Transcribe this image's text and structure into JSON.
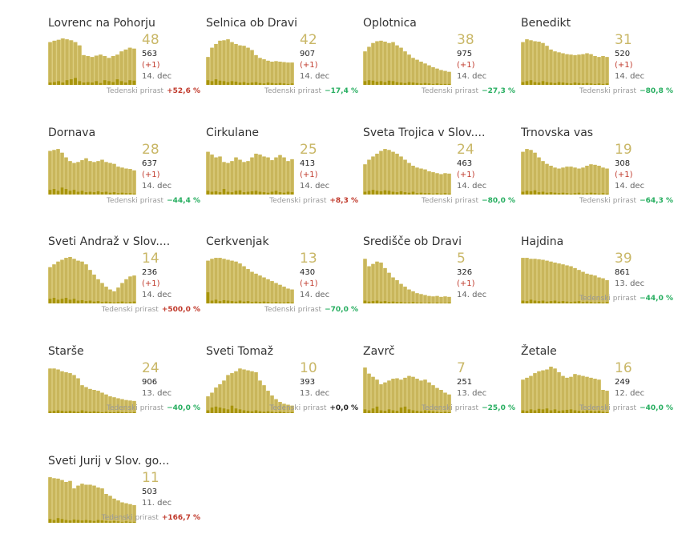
{
  "growth_label": "Tedenski prirast",
  "colors": {
    "area": "#dccd7e",
    "bar": "#c9b65c",
    "daily": "#a8950c",
    "number": "#c9b767",
    "positive": "#c0392b",
    "negative": "#27ae60",
    "zero": "#222222"
  },
  "chart_data": [
    {
      "type": "bar",
      "title": "Lovrenc na Pohorju",
      "current": "48",
      "total": "563",
      "delta": "(+1)",
      "date": "14. dec",
      "growth": "+52,6 %",
      "growth_sign": "positive",
      "values": [
        92,
        95,
        97,
        100,
        98,
        96,
        92,
        85,
        64,
        62,
        60,
        63,
        65,
        62,
        58,
        62,
        65,
        72,
        76,
        80,
        78
      ],
      "daily": [
        5,
        6,
        8,
        5,
        10,
        12,
        15,
        8,
        5,
        6,
        5,
        8,
        4,
        10,
        8,
        6,
        12,
        8,
        5,
        10,
        9
      ]
    },
    {
      "type": "bar",
      "title": "Selnica ob Dravi",
      "current": "42",
      "total": "907",
      "delta": "(+1)",
      "date": "14. dec",
      "growth": "−17,4 %",
      "growth_sign": "negative",
      "values": [
        60,
        80,
        88,
        95,
        96,
        98,
        92,
        88,
        85,
        84,
        80,
        75,
        64,
        58,
        55,
        52,
        50,
        51,
        50,
        49,
        48,
        48
      ],
      "daily": [
        10,
        8,
        12,
        9,
        8,
        6,
        8,
        7,
        5,
        6,
        4,
        5,
        6,
        4,
        3,
        5,
        4,
        3,
        4,
        3,
        2,
        3
      ]
    },
    {
      "type": "bar",
      "title": "Oplotnica",
      "current": "38",
      "total": "975",
      "delta": "(+1)",
      "date": "14. dec",
      "growth": "−27,3 %",
      "growth_sign": "negative",
      "values": [
        72,
        82,
        90,
        94,
        95,
        93,
        90,
        92,
        85,
        80,
        72,
        65,
        58,
        54,
        50,
        46,
        42,
        38,
        35,
        32,
        30,
        28
      ],
      "daily": [
        8,
        10,
        9,
        7,
        8,
        6,
        9,
        8,
        6,
        5,
        4,
        6,
        5,
        4,
        3,
        4,
        3,
        2,
        3,
        2,
        2,
        2
      ]
    },
    {
      "type": "bar",
      "title": "Benedikt",
      "current": "31",
      "total": "520",
      "delta": "(+1)",
      "date": "14. dec",
      "growth": "−80,8 %",
      "growth_sign": "negative",
      "values": [
        92,
        98,
        96,
        94,
        93,
        90,
        84,
        76,
        72,
        70,
        68,
        66,
        65,
        64,
        65,
        66,
        68,
        66,
        62,
        60,
        62,
        60
      ],
      "daily": [
        6,
        8,
        10,
        6,
        5,
        8,
        6,
        5,
        4,
        6,
        5,
        4,
        3,
        5,
        4,
        3,
        4,
        3,
        2,
        3,
        2,
        3
      ]
    },
    {
      "type": "bar",
      "title": "Dornava",
      "current": "28",
      "total": "637",
      "delta": "(+1)",
      "date": "14. dec",
      "growth": "−44,4 %",
      "growth_sign": "negative",
      "values": [
        94,
        96,
        98,
        90,
        80,
        72,
        68,
        70,
        74,
        78,
        72,
        70,
        72,
        75,
        70,
        68,
        66,
        60,
        58,
        56,
        55,
        52
      ],
      "daily": [
        10,
        12,
        8,
        15,
        12,
        8,
        10,
        6,
        8,
        5,
        6,
        5,
        7,
        5,
        6,
        4,
        5,
        3,
        4,
        3,
        3,
        2
      ]
    },
    {
      "type": "bar",
      "title": "Cirkulane",
      "current": "25",
      "total": "413",
      "delta": "(+1)",
      "date": "14. dec",
      "growth": "+8,3 %",
      "growth_sign": "positive",
      "values": [
        92,
        86,
        80,
        82,
        70,
        68,
        72,
        80,
        75,
        70,
        72,
        80,
        88,
        86,
        82,
        80,
        74,
        80,
        85,
        80,
        72,
        76
      ],
      "daily": [
        8,
        6,
        7,
        5,
        12,
        6,
        5,
        8,
        9,
        5,
        6,
        7,
        8,
        6,
        5,
        4,
        6,
        8,
        5,
        4,
        6,
        5
      ]
    },
    {
      "type": "bar",
      "title": "Sveta Trojica v Slov....",
      "current": "24",
      "total": "463",
      "delta": "(+1)",
      "date": "14. dec",
      "growth": "−80,0 %",
      "growth_sign": "negative",
      "values": [
        65,
        75,
        82,
        88,
        94,
        98,
        96,
        92,
        88,
        82,
        75,
        68,
        62,
        58,
        56,
        54,
        50,
        48,
        46,
        44,
        46,
        45
      ],
      "daily": [
        6,
        8,
        10,
        8,
        7,
        9,
        8,
        6,
        5,
        7,
        5,
        4,
        6,
        3,
        4,
        3,
        3,
        2,
        3,
        2,
        3,
        2
      ]
    },
    {
      "type": "bar",
      "title": "Trnovska vas",
      "current": "19",
      "total": "308",
      "delta": "(+1)",
      "date": "14. dec",
      "growth": "−64,3 %",
      "growth_sign": "negative",
      "values": [
        92,
        98,
        96,
        90,
        80,
        72,
        66,
        62,
        58,
        56,
        58,
        60,
        60,
        58,
        56,
        58,
        62,
        65,
        64,
        62,
        58,
        56
      ],
      "daily": [
        6,
        8,
        7,
        9,
        5,
        6,
        4,
        5,
        4,
        3,
        4,
        3,
        2,
        3,
        4,
        2,
        3,
        4,
        3,
        2,
        3,
        2
      ]
    },
    {
      "type": "bar",
      "title": "Sveti Andraž v Slov....",
      "current": "14",
      "total": "236",
      "delta": "(+1)",
      "date": "14. dec",
      "growth": "+500,0 %",
      "growth_sign": "positive",
      "values": [
        78,
        84,
        90,
        94,
        98,
        100,
        96,
        92,
        90,
        84,
        72,
        62,
        52,
        44,
        36,
        30,
        26,
        34,
        44,
        52,
        58,
        60
      ],
      "daily": [
        10,
        12,
        8,
        10,
        12,
        8,
        10,
        6,
        7,
        5,
        6,
        4,
        5,
        3,
        4,
        3,
        2,
        3,
        4,
        2,
        3,
        4
      ]
    },
    {
      "type": "bar",
      "title": "Cerkvenjak",
      "current": "13",
      "total": "430",
      "delta": "(+1)",
      "date": "14. dec",
      "growth": "−70,0 %",
      "growth_sign": "negative",
      "values": [
        92,
        96,
        98,
        98,
        96,
        94,
        92,
        90,
        86,
        80,
        74,
        68,
        64,
        60,
        56,
        52,
        48,
        44,
        40,
        36,
        32,
        30
      ],
      "daily": [
        24,
        6,
        8,
        5,
        7,
        6,
        5,
        4,
        6,
        4,
        5,
        3,
        4,
        3,
        4,
        3,
        2,
        3,
        2,
        2,
        3,
        2
      ]
    },
    {
      "type": "bar",
      "title": "Središče ob Dravi",
      "current": "5",
      "total": "326",
      "delta": "(+1)",
      "date": "14. dec",
      "growth": "",
      "growth_sign": "none",
      "values": [
        96,
        80,
        85,
        90,
        88,
        76,
        66,
        56,
        50,
        42,
        36,
        30,
        26,
        22,
        20,
        18,
        16,
        15,
        16,
        14,
        15,
        14
      ],
      "daily": [
        6,
        4,
        5,
        6,
        4,
        5,
        3,
        4,
        3,
        3,
        2,
        2,
        3,
        2,
        2,
        1,
        2,
        1,
        2,
        1,
        1,
        2
      ]
    },
    {
      "type": "bar",
      "title": "Hajdina",
      "current": "39",
      "total": "861",
      "delta": "",
      "date": "13. dec",
      "growth": "−44,0 %",
      "growth_sign": "negative",
      "values": [
        98,
        98,
        96,
        96,
        95,
        94,
        92,
        90,
        88,
        86,
        84,
        82,
        80,
        76,
        72,
        68,
        64,
        62,
        60,
        56,
        54,
        50
      ],
      "daily": [
        6,
        5,
        8,
        6,
        5,
        6,
        4,
        5,
        6,
        4,
        5,
        4,
        3,
        4,
        5,
        3,
        4,
        3,
        2,
        3,
        2,
        3
      ]
    },
    {
      "type": "bar",
      "title": "Starše",
      "current": "24",
      "total": "906",
      "delta": "",
      "date": "13. dec",
      "growth": "−40,0 %",
      "growth_sign": "negative",
      "values": [
        96,
        96,
        94,
        90,
        88,
        86,
        82,
        75,
        60,
        56,
        52,
        50,
        48,
        44,
        40,
        36,
        34,
        32,
        30,
        28,
        27,
        26
      ],
      "daily": [
        4,
        5,
        6,
        5,
        4,
        5,
        4,
        3,
        6,
        4,
        3,
        4,
        3,
        2,
        3,
        2,
        2,
        3,
        2,
        2,
        1,
        2
      ]
    },
    {
      "type": "bar",
      "title": "Sveti Tomaž",
      "current": "10",
      "total": "393",
      "delta": "",
      "date": "13. dec",
      "growth": "+0,0 %",
      "growth_sign": "zero",
      "values": [
        36,
        44,
        55,
        62,
        70,
        82,
        86,
        90,
        96,
        94,
        92,
        90,
        88,
        70,
        60,
        48,
        38,
        30,
        24,
        20,
        18,
        16
      ],
      "daily": [
        6,
        12,
        14,
        12,
        10,
        8,
        16,
        10,
        8,
        6,
        5,
        4,
        6,
        4,
        3,
        4,
        3,
        2,
        3,
        2,
        1,
        2
      ]
    },
    {
      "type": "bar",
      "title": "Zavrč",
      "current": "7",
      "total": "251",
      "delta": "",
      "date": "13. dec",
      "growth": "−25,0 %",
      "growth_sign": "negative",
      "values": [
        98,
        85,
        78,
        72,
        62,
        66,
        70,
        74,
        75,
        72,
        76,
        80,
        78,
        74,
        70,
        72,
        66,
        60,
        54,
        50,
        44,
        40
      ],
      "daily": [
        8,
        6,
        10,
        14,
        6,
        5,
        8,
        6,
        5,
        12,
        14,
        8,
        6,
        5,
        4,
        6,
        5,
        4,
        3,
        2,
        3,
        2
      ]
    },
    {
      "type": "bar",
      "title": "Žetale",
      "current": "16",
      "total": "249",
      "delta": "",
      "date": "12. dec",
      "growth": "−40,0 %",
      "growth_sign": "negative",
      "values": [
        72,
        76,
        80,
        86,
        90,
        92,
        94,
        100,
        96,
        88,
        80,
        76,
        78,
        84,
        82,
        80,
        78,
        76,
        74,
        72,
        50,
        48
      ],
      "daily": [
        6,
        5,
        8,
        6,
        9,
        8,
        10,
        6,
        8,
        5,
        6,
        7,
        8,
        6,
        5,
        4,
        6,
        5,
        4,
        5,
        3,
        2
      ]
    },
    {
      "type": "bar",
      "title": "Sveti Jurij v Slov. go...",
      "current": "11",
      "total": "503",
      "delta": "",
      "date": "11. dec",
      "growth": "+166,7 %",
      "growth_sign": "positive",
      "values": [
        98,
        96,
        95,
        92,
        88,
        90,
        74,
        80,
        84,
        82,
        82,
        80,
        76,
        74,
        62,
        58,
        52,
        48,
        44,
        42,
        40,
        38
      ],
      "daily": [
        8,
        6,
        10,
        8,
        6,
        5,
        7,
        6,
        5,
        6,
        5,
        4,
        6,
        5,
        4,
        3,
        4,
        3,
        2,
        3,
        2,
        2
      ]
    }
  ]
}
